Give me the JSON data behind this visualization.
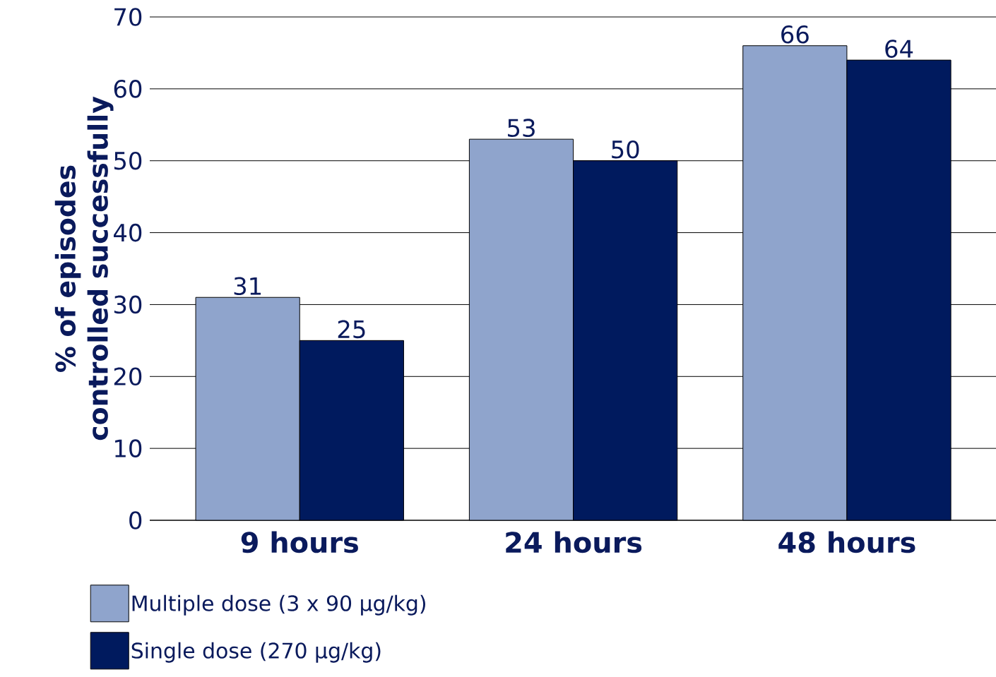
{
  "chart_data": {
    "type": "bar",
    "ylabel": "% of episodes controlled successfully",
    "categories": [
      "9 hours",
      "24 hours",
      "48 hours"
    ],
    "series": [
      {
        "name": "Multiple dose (3 x 90 µg/kg)",
        "color": "#8fa4cc",
        "values": [
          31,
          53,
          66
        ]
      },
      {
        "name": "Single dose (270 µg/kg)",
        "color": "#001a5e",
        "values": [
          25,
          50,
          64
        ]
      }
    ],
    "ylim": [
      0,
      70
    ],
    "yticks": [
      0,
      10,
      20,
      30,
      40,
      50,
      60,
      70
    ],
    "grid": "y",
    "legend": "bottom left",
    "data_labels": true
  }
}
